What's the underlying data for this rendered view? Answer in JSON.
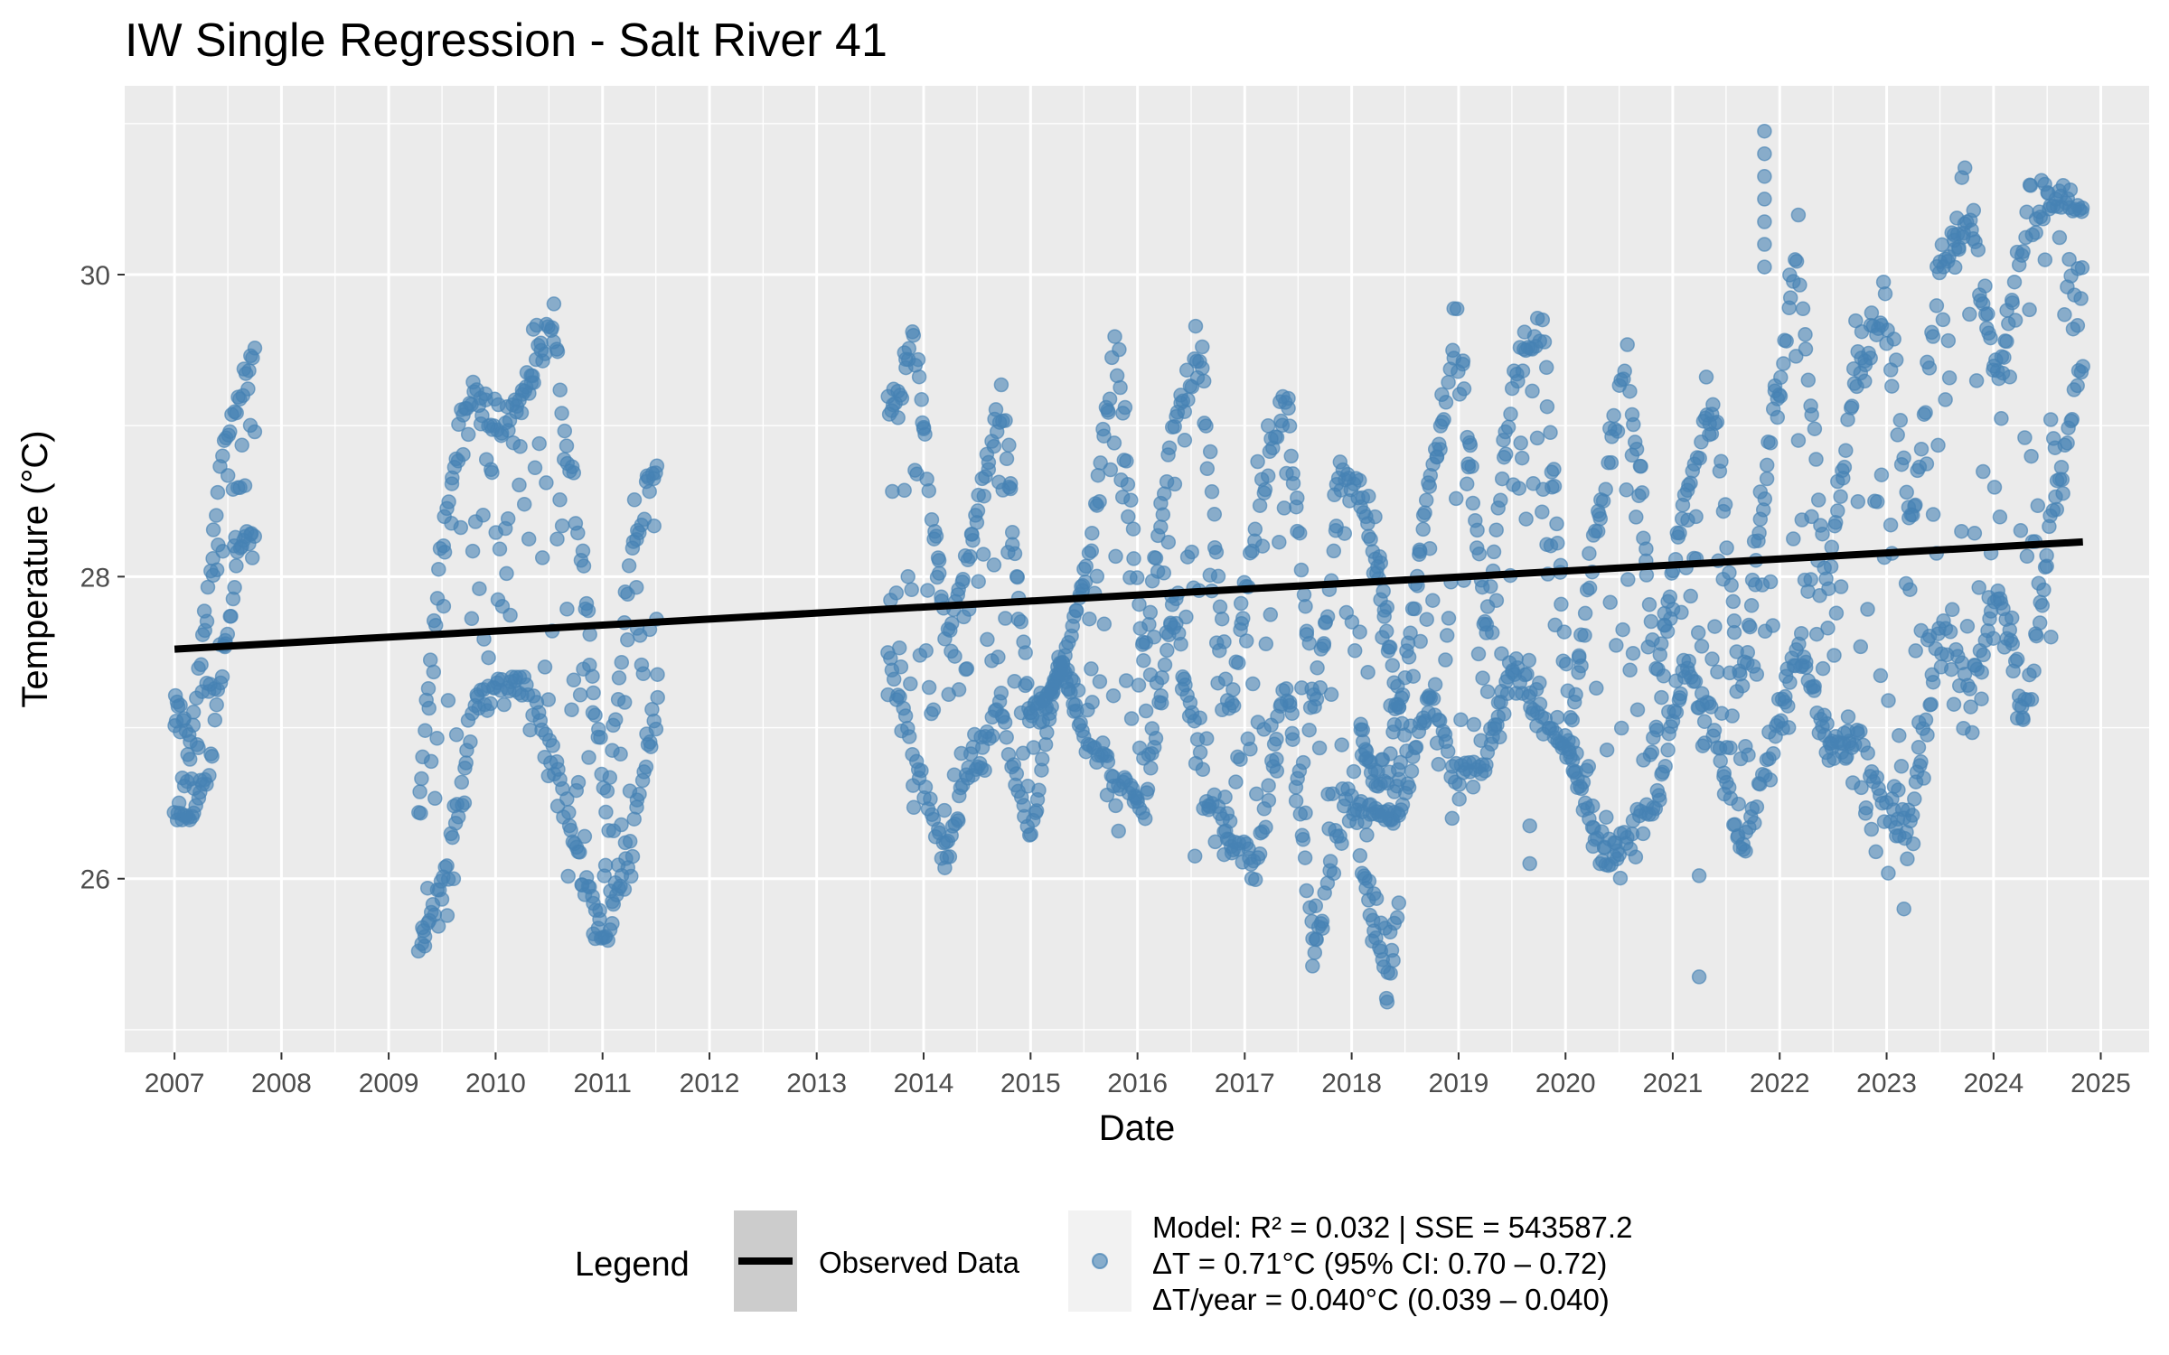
{
  "chart_data": {
    "type": "scatter",
    "title": "IW Single Regression - Salt River 41",
    "xlabel": "Date",
    "ylabel": "Temperature (°C)",
    "x_type": "date",
    "xlim": [
      "2006-07-15",
      "2025-06-15"
    ],
    "ylim": [
      24.85,
      31.25
    ],
    "x_ticks": [
      "2007",
      "2008",
      "2009",
      "2010",
      "2011",
      "2012",
      "2013",
      "2014",
      "2015",
      "2016",
      "2017",
      "2018",
      "2019",
      "2020",
      "2021",
      "2022",
      "2023",
      "2024",
      "2025"
    ],
    "y_ticks": [
      26,
      28,
      30
    ],
    "grid": true,
    "colors": {
      "panel_background": "#ebebeb",
      "grid": "#ffffff",
      "points": "#4682b4",
      "trend_line": "#000000",
      "legend_key_line": "#cccccc",
      "legend_key_points": "#f2f2f2"
    },
    "series": [
      {
        "name": "Observed Data",
        "kind": "line",
        "x": [
          "2007-01-01",
          "2024-11-01"
        ],
        "y": [
          27.52,
          28.23
        ]
      },
      {
        "kind": "scatter",
        "segments": [
          {
            "start": "2007-01-01",
            "end": "2007-10-01",
            "min_env": [
              26.3,
              26.3,
              26.5,
              27.2,
              28.0,
              28.1
            ],
            "max_env": [
              27.35,
              27.0,
              27.9,
              29.1,
              29.3,
              29.75
            ]
          },
          {
            "start": "2009-04-15",
            "end": "2011-07-15",
            "min_env": [
              25.4,
              25.6,
              26.8,
              27.0,
              27.0,
              26.3,
              25.8,
              25.45,
              26.0,
              27.0
            ],
            "max_env": [
              26.7,
              28.9,
              29.6,
              29.2,
              29.5,
              30.2,
              28.5,
              26.6,
              28.5,
              29.05
            ]
          },
          {
            "start": "2013-09-01",
            "end": "2024-11-01",
            "min_env": [
              27.2,
              26.3,
              25.95,
              26.6,
              26.8,
              26.1,
              27.5,
              26.7,
              26.2,
              26.3,
              27.6,
              26.3,
              26.1,
              25.8,
              27.1,
              25.2,
              26.2,
              26.1,
              26.3,
              27.0,
              26.2,
              26.6,
              27.2,
              26.6,
              26.8,
              25.8,
              25.8,
              26.4,
              27.2,
              26.7,
              26.0,
              26.5,
              27.2,
              26.7,
              26.6,
              25.9,
              26.1,
              27.3,
              26.7,
              27.7,
              26.6,
              28.2,
              29.3
            ],
            "max_env": [
              29.3,
              29.9,
              27.8,
              28.5,
              29.5,
              27.2,
              27.3,
              28.2,
              29.95,
              27.6,
              29.2,
              29.8,
              27.2,
              28.8,
              29.5,
              27.3,
              29.1,
              28.6,
              27.2,
              28.8,
              30.0,
              27.8,
              29.6,
              30.1,
              27.0,
              28.8,
              29.9,
              27.5,
              28.7,
              29.5,
              27.4,
              29.2,
              30.6,
              28.0,
              29.7,
              30.3,
              28.6,
              30.5,
              30.85,
              29.5,
              30.8,
              30.85,
              30.6
            ]
          },
          {
            "start": "2018-02-01",
            "end": "2018-06-15",
            "min_env": [
              26.0,
              25.5,
              25.1,
              25.7
            ],
            "max_env": [
              27.1,
              26.8,
              26.9,
              27.4
            ]
          }
        ],
        "outliers": [
          {
            "x": "2021-04-01",
            "y": 26.02
          },
          {
            "x": "2021-04-01",
            "y": 25.35
          },
          {
            "x": "2024-07-15",
            "y": 27.6
          },
          {
            "x": "2021-11-10",
            "y": 30.95
          },
          {
            "x": "2021-11-10",
            "y": 30.8
          },
          {
            "x": "2021-11-10",
            "y": 30.65
          },
          {
            "x": "2021-11-10",
            "y": 30.5
          },
          {
            "x": "2021-11-10",
            "y": 30.35
          },
          {
            "x": "2021-11-10",
            "y": 30.2
          },
          {
            "x": "2021-11-10",
            "y": 30.05
          },
          {
            "x": "2019-09-01",
            "y": 26.35
          },
          {
            "x": "2019-09-01",
            "y": 26.1
          },
          {
            "x": "2016-07-15",
            "y": 26.15
          },
          {
            "x": "2010-11-01",
            "y": 26.28
          },
          {
            "x": "2017-09-01",
            "y": 25.6
          },
          {
            "x": "2023-03-01",
            "y": 25.8
          },
          {
            "x": "2018-09-20",
            "y": 27.1
          },
          {
            "x": "2018-09-20",
            "y": 27.2
          }
        ]
      }
    ],
    "legend": {
      "title": "Legend",
      "position": "bottom",
      "line_label": "Observed Data",
      "points_label_lines": [
        "Model: R² = 0.032 | SSE = 543587.2",
        "ΔT = 0.71°C (95% CI: 0.70 – 0.72)",
        "ΔT/year = 0.040°C (0.039 – 0.040)"
      ]
    }
  }
}
